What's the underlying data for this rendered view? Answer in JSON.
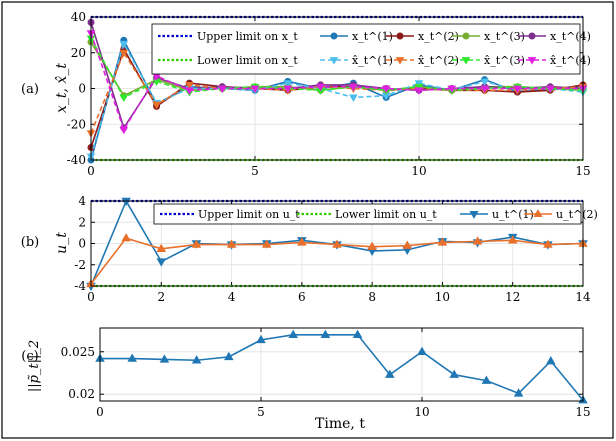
{
  "panel_tags": [
    "(a)",
    "(b)",
    "(c)"
  ],
  "colors": {
    "upper": "#0000cc",
    "lower": "#33cc00",
    "blue": "#1f77b4",
    "red": "#8b1a1a",
    "orange": "#e8702a",
    "green": "#77ac30",
    "purple": "#7e2f8e",
    "cyan": "#4dbeee",
    "lime": "#2ee82e",
    "magenta": "#e020e0",
    "grid": "#e6e6e6"
  },
  "chart_data": [
    {
      "type": "line",
      "panel": "a",
      "ylabel": "x_t, x̂_t",
      "xlim": [
        0,
        15
      ],
      "ylim": [
        -40,
        40
      ],
      "xticks": [
        0,
        5,
        10,
        15
      ],
      "yticks": [
        -40,
        -20,
        0,
        20,
        40
      ],
      "grid": true,
      "legend_position": "top-right",
      "limits": [
        {
          "name": "Upper limit on x_t",
          "value": 40,
          "color_key": "upper"
        },
        {
          "name": "Lower limit on x_t",
          "value": -40,
          "color_key": "lower"
        }
      ],
      "x": [
        0,
        1,
        2,
        3,
        4,
        5,
        6,
        7,
        8,
        9,
        10,
        11,
        12,
        13,
        14,
        15
      ],
      "series": [
        {
          "name": "x_t^(1)",
          "color_key": "blue",
          "dashed": false,
          "marker": "circle",
          "values": [
            -40,
            27,
            -9,
            1,
            0,
            -1,
            4,
            0,
            3,
            -5,
            2,
            -1,
            5,
            -2,
            0,
            1
          ]
        },
        {
          "name": "x_t^(2)",
          "color_key": "red",
          "dashed": false,
          "marker": "circle",
          "values": [
            -33,
            22,
            -10,
            3,
            1,
            0,
            -1,
            1,
            1,
            -1,
            0,
            -1,
            -1,
            -2,
            -1,
            2
          ]
        },
        {
          "name": "x_t^(3)",
          "color_key": "green",
          "dashed": false,
          "marker": "circle",
          "values": [
            26,
            -4,
            5,
            -1,
            0,
            1,
            1,
            -1,
            1,
            -1,
            1,
            -1,
            1,
            1,
            0,
            -1
          ]
        },
        {
          "name": "x_t^(4)",
          "color_key": "purple",
          "dashed": false,
          "marker": "circle",
          "values": [
            37,
            -22,
            6,
            0,
            1,
            0,
            0,
            2,
            2,
            0,
            -1,
            0,
            1,
            0,
            1,
            0
          ]
        },
        {
          "name": "x̂_t^(1)",
          "color_key": "cyan",
          "dashed": true,
          "marker": "triangle",
          "values": [
            -38,
            25,
            -8,
            0,
            0,
            -1,
            3,
            0,
            -5,
            -4,
            3,
            -1,
            4,
            -1,
            0,
            -2
          ]
        },
        {
          "name": "x̂_t^(2)",
          "color_key": "orange",
          "dashed": true,
          "marker": "triangle",
          "values": [
            -25,
            20,
            -9,
            2,
            0,
            0,
            -1,
            1,
            0,
            -1,
            0,
            -1,
            -1,
            -1,
            0,
            1
          ]
        },
        {
          "name": "x̂_t^(3)",
          "color_key": "lime",
          "dashed": true,
          "marker": "triangle",
          "values": [
            28,
            -5,
            4,
            -2,
            0,
            1,
            0,
            -1,
            1,
            -1,
            1,
            -1,
            0,
            1,
            0,
            -1
          ]
        },
        {
          "name": "x̂_t^(4)",
          "color_key": "magenta",
          "dashed": true,
          "marker": "triangle",
          "values": [
            31,
            -23,
            7,
            -1,
            0,
            0,
            0,
            1,
            1,
            0,
            -1,
            0,
            0,
            0,
            0,
            0
          ]
        }
      ]
    },
    {
      "type": "line",
      "panel": "b",
      "ylabel": "u_t",
      "xlim": [
        0,
        14
      ],
      "ylim": [
        -4,
        4
      ],
      "xticks": [
        0,
        2,
        4,
        6,
        8,
        10,
        12,
        14
      ],
      "yticks": [
        -4,
        -2,
        0,
        2,
        4
      ],
      "grid": true,
      "legend_position": "top-right",
      "limits": [
        {
          "name": "Upper limit on u_t",
          "value": 4,
          "color_key": "upper"
        },
        {
          "name": "Lower limit on u_t",
          "value": -4,
          "color_key": "lower"
        }
      ],
      "x": [
        0,
        1,
        2,
        3,
        4,
        5,
        6,
        7,
        8,
        9,
        10,
        11,
        12,
        13,
        14
      ],
      "series": [
        {
          "name": "u_t^(1)",
          "color_key": "blue",
          "marker": "triangle-down",
          "values": [
            -4,
            4,
            -1.7,
            0,
            -0.1,
            0,
            0.3,
            -0.1,
            -0.7,
            -0.6,
            0.2,
            0.1,
            0.6,
            -0.1,
            0
          ]
        },
        {
          "name": "u_t^(2)",
          "color_key": "orange",
          "marker": "triangle-up",
          "values": [
            -3.8,
            0.5,
            -0.5,
            -0.1,
            -0.1,
            -0.1,
            0.1,
            -0.1,
            -0.3,
            -0.2,
            0.1,
            0.2,
            0.3,
            -0.1,
            0
          ]
        }
      ]
    },
    {
      "type": "line",
      "panel": "c",
      "ylabel": "||p̃_t||_2",
      "xlabel": "Time, t",
      "xlim": [
        0,
        15
      ],
      "ylim": [
        0.0192,
        0.0278
      ],
      "xticks": [
        0,
        5,
        10,
        15
      ],
      "yticks": [
        0.02,
        0.025
      ],
      "ytick_labels": [
        "0.02",
        "0.025"
      ],
      "grid": true,
      "x": [
        0,
        1,
        2,
        3,
        4,
        5,
        6,
        7,
        8,
        9,
        10,
        11,
        12,
        13,
        14,
        15
      ],
      "series": [
        {
          "color_key": "blue",
          "marker": "triangle-up",
          "values": [
            0.0242,
            0.0242,
            0.0241,
            0.024,
            0.0244,
            0.0264,
            0.027,
            0.027,
            0.027,
            0.0223,
            0.025,
            0.0223,
            0.0216,
            0.0201,
            0.0239,
            0.0193
          ]
        }
      ]
    }
  ]
}
